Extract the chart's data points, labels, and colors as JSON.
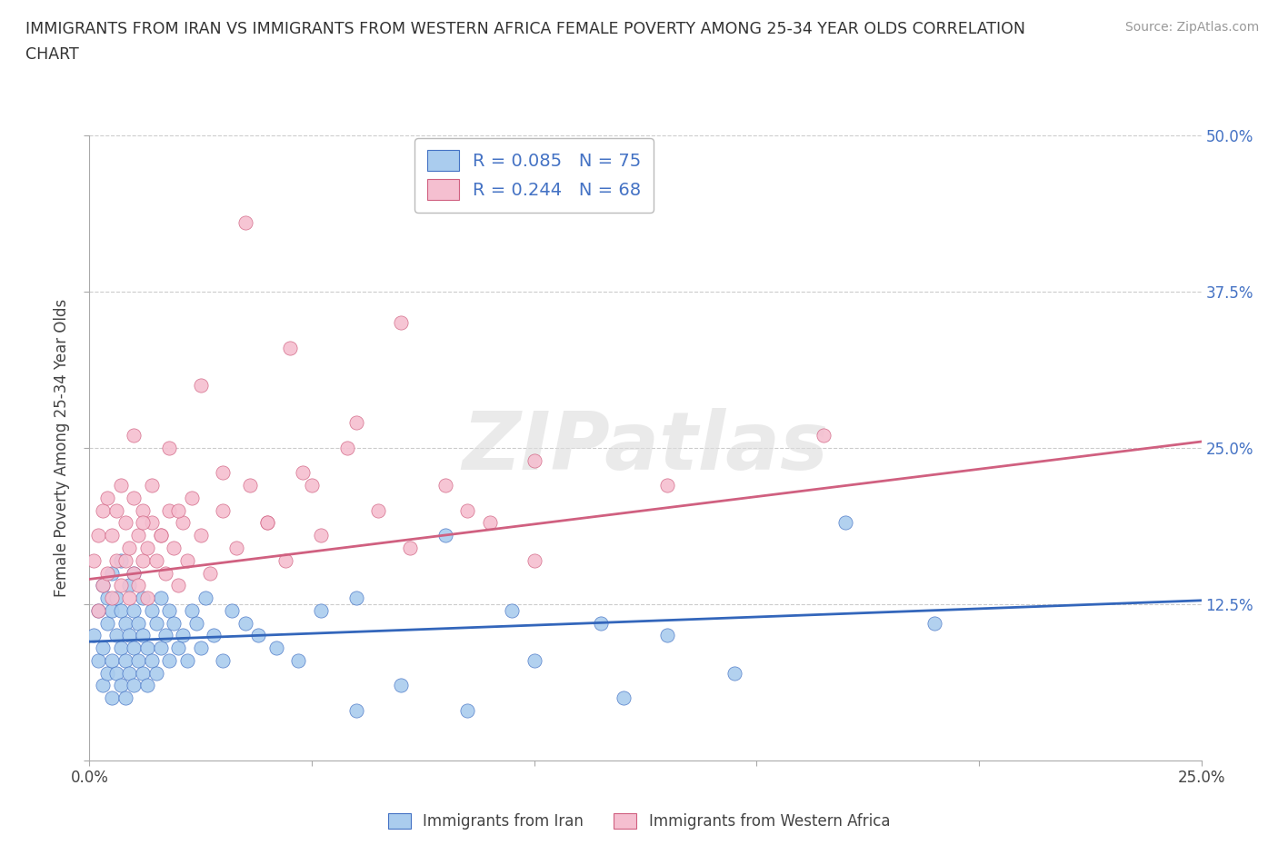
{
  "title_line1": "IMMIGRANTS FROM IRAN VS IMMIGRANTS FROM WESTERN AFRICA FEMALE POVERTY AMONG 25-34 YEAR OLDS CORRELATION",
  "title_line2": "CHART",
  "source_text": "Source: ZipAtlas.com",
  "ylabel": "Female Poverty Among 25-34 Year Olds",
  "xlim": [
    0.0,
    0.25
  ],
  "ylim": [
    0.0,
    0.5
  ],
  "xtick_vals": [
    0.0,
    0.05,
    0.1,
    0.15,
    0.2,
    0.25
  ],
  "xtick_labels": [
    "0.0%",
    "",
    "",
    "",
    "",
    "25.0%"
  ],
  "ytick_vals": [
    0.0,
    0.125,
    0.25,
    0.375,
    0.5
  ],
  "right_ytick_labels": [
    "",
    "12.5%",
    "25.0%",
    "37.5%",
    "50.0%"
  ],
  "iran_R": 0.085,
  "iran_N": 75,
  "iran_color": "#aaccee",
  "iran_edge_color": "#4472c4",
  "iran_line_color": "#3366bb",
  "wa_R": 0.244,
  "wa_N": 68,
  "wa_color": "#f5bfd0",
  "wa_edge_color": "#d06080",
  "wa_line_color": "#d06080",
  "legend_iran_label": "Immigrants from Iran",
  "legend_wa_label": "Immigrants from Western Africa",
  "background_color": "#ffffff",
  "grid_color": "#cccccc",
  "watermark_text": "ZIPatlas",
  "iran_line_y0": 0.095,
  "iran_line_y1": 0.128,
  "wa_line_y0": 0.145,
  "wa_line_y1": 0.255,
  "iran_x": [
    0.001,
    0.002,
    0.002,
    0.003,
    0.003,
    0.003,
    0.004,
    0.004,
    0.004,
    0.005,
    0.005,
    0.005,
    0.005,
    0.006,
    0.006,
    0.006,
    0.007,
    0.007,
    0.007,
    0.007,
    0.008,
    0.008,
    0.008,
    0.009,
    0.009,
    0.009,
    0.01,
    0.01,
    0.01,
    0.01,
    0.011,
    0.011,
    0.012,
    0.012,
    0.012,
    0.013,
    0.013,
    0.014,
    0.014,
    0.015,
    0.015,
    0.016,
    0.016,
    0.017,
    0.018,
    0.018,
    0.019,
    0.02,
    0.021,
    0.022,
    0.023,
    0.024,
    0.025,
    0.026,
    0.028,
    0.03,
    0.032,
    0.035,
    0.038,
    0.042,
    0.047,
    0.052,
    0.06,
    0.07,
    0.085,
    0.1,
    0.12,
    0.145,
    0.17,
    0.19,
    0.06,
    0.08,
    0.095,
    0.115,
    0.13
  ],
  "iran_y": [
    0.1,
    0.08,
    0.12,
    0.06,
    0.14,
    0.09,
    0.07,
    0.11,
    0.13,
    0.05,
    0.08,
    0.12,
    0.15,
    0.07,
    0.1,
    0.13,
    0.06,
    0.09,
    0.12,
    0.16,
    0.05,
    0.08,
    0.11,
    0.07,
    0.1,
    0.14,
    0.06,
    0.09,
    0.12,
    0.15,
    0.08,
    0.11,
    0.07,
    0.1,
    0.13,
    0.06,
    0.09,
    0.08,
    0.12,
    0.07,
    0.11,
    0.09,
    0.13,
    0.1,
    0.08,
    0.12,
    0.11,
    0.09,
    0.1,
    0.08,
    0.12,
    0.11,
    0.09,
    0.13,
    0.1,
    0.08,
    0.12,
    0.11,
    0.1,
    0.09,
    0.08,
    0.12,
    0.04,
    0.06,
    0.04,
    0.08,
    0.05,
    0.07,
    0.19,
    0.11,
    0.13,
    0.18,
    0.12,
    0.11,
    0.1
  ],
  "wa_x": [
    0.001,
    0.002,
    0.002,
    0.003,
    0.003,
    0.004,
    0.004,
    0.005,
    0.005,
    0.006,
    0.006,
    0.007,
    0.007,
    0.008,
    0.008,
    0.009,
    0.009,
    0.01,
    0.01,
    0.011,
    0.011,
    0.012,
    0.012,
    0.013,
    0.013,
    0.014,
    0.015,
    0.016,
    0.017,
    0.018,
    0.019,
    0.02,
    0.021,
    0.022,
    0.023,
    0.025,
    0.027,
    0.03,
    0.033,
    0.036,
    0.04,
    0.044,
    0.048,
    0.052,
    0.058,
    0.065,
    0.072,
    0.08,
    0.09,
    0.1,
    0.01,
    0.012,
    0.014,
    0.016,
    0.018,
    0.02,
    0.025,
    0.03,
    0.035,
    0.04,
    0.045,
    0.05,
    0.06,
    0.07,
    0.085,
    0.1,
    0.13,
    0.165
  ],
  "wa_y": [
    0.16,
    0.12,
    0.18,
    0.14,
    0.2,
    0.15,
    0.21,
    0.13,
    0.18,
    0.16,
    0.2,
    0.14,
    0.22,
    0.16,
    0.19,
    0.13,
    0.17,
    0.15,
    0.21,
    0.14,
    0.18,
    0.16,
    0.2,
    0.13,
    0.17,
    0.19,
    0.16,
    0.18,
    0.15,
    0.2,
    0.17,
    0.14,
    0.19,
    0.16,
    0.21,
    0.18,
    0.15,
    0.2,
    0.17,
    0.22,
    0.19,
    0.16,
    0.23,
    0.18,
    0.25,
    0.2,
    0.17,
    0.22,
    0.19,
    0.16,
    0.26,
    0.19,
    0.22,
    0.18,
    0.25,
    0.2,
    0.3,
    0.23,
    0.43,
    0.19,
    0.33,
    0.22,
    0.27,
    0.35,
    0.2,
    0.24,
    0.22,
    0.26
  ]
}
